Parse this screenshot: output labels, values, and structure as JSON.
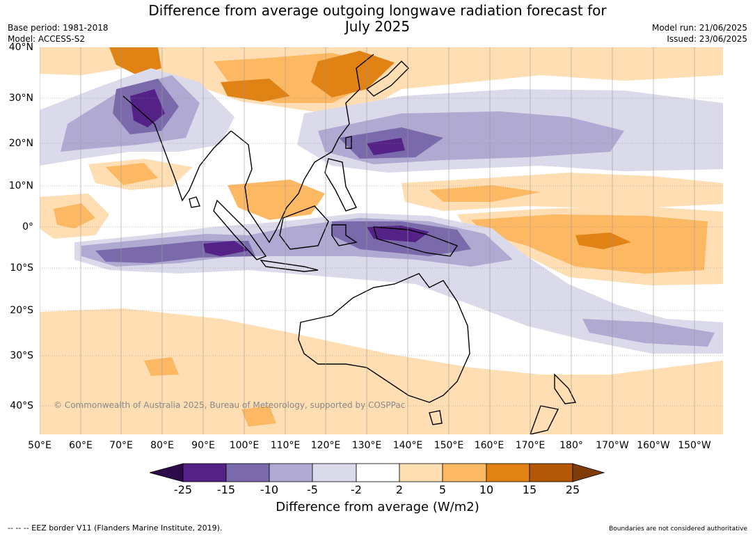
{
  "header": {
    "title_line1": "Difference from average outgoing longwave radiation forecast for",
    "title_line2": "July 2025",
    "base_period": "Base period: 1981-2018",
    "model": "Model: ACCESS-S2",
    "model_run": "Model run: 21/06/2025",
    "issued": "Issued: 23/06/2025"
  },
  "map": {
    "lat_labels": [
      "40°N",
      "30°N",
      "20°N",
      "10°N",
      "0°",
      "10°S",
      "20°S",
      "30°S",
      "40°S"
    ],
    "lon_labels": [
      "50°E",
      "60°E",
      "70°E",
      "80°E",
      "90°E",
      "100°E",
      "110°E",
      "120°E",
      "130°E",
      "140°E",
      "150°E",
      "160°E",
      "170°E",
      "180°",
      "170°W",
      "160°W",
      "150°W"
    ],
    "credit": "© Commonwealth of Australia 2025, Bureau of Meteorology, supported by COSPPac"
  },
  "colorbar": {
    "title": "Difference from average (W/m2)",
    "tick_labels": [
      "-25",
      "-15",
      "-10",
      "-5",
      "-2",
      "2",
      "5",
      "10",
      "15",
      "25"
    ],
    "colors": [
      "#2d0a4a",
      "#542287",
      "#7a6aac",
      "#b0a9d1",
      "#dadaeb",
      "#ffffff",
      "#fedeb2",
      "#fdb863",
      "#e08214",
      "#b35806",
      "#7f3b08"
    ]
  },
  "footer": {
    "eez_note": "--  --  -- EEZ border V11 (Flanders Marine Institute, 2019).",
    "disclaimer": "Boundaries are not considered authoritative"
  }
}
